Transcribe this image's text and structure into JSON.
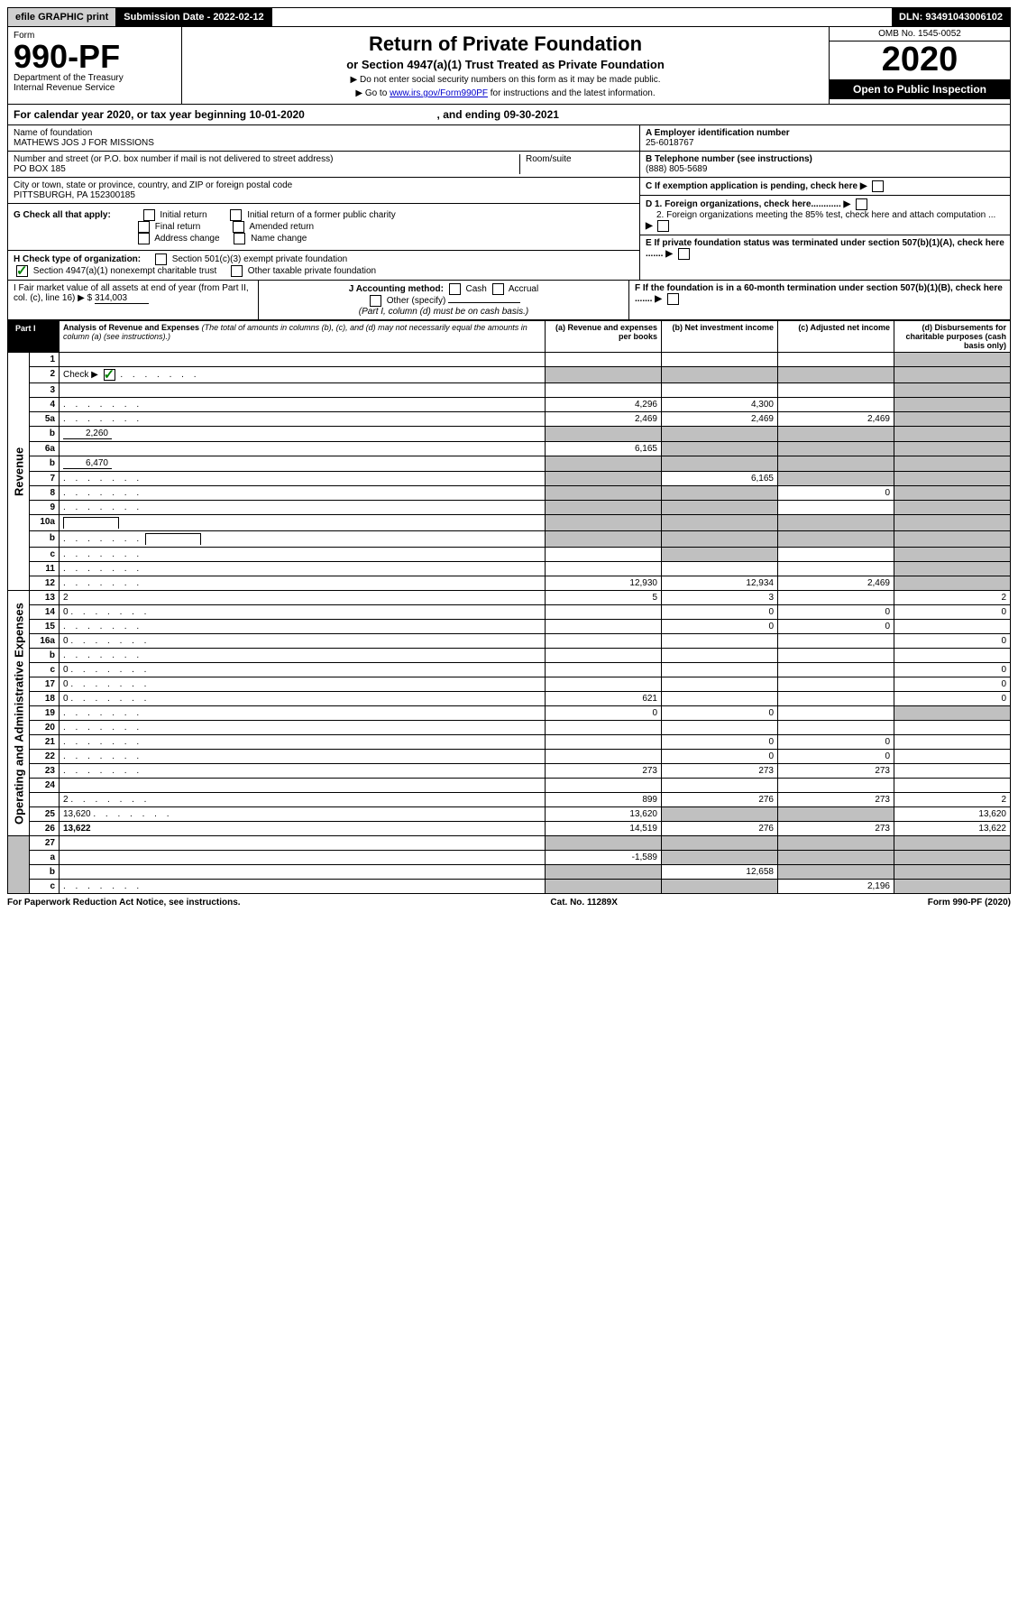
{
  "top": {
    "efile": "efile GRAPHIC print",
    "submission": "Submission Date - 2022-02-12",
    "dln": "DLN: 93491043006102"
  },
  "header": {
    "form_label": "Form",
    "form_number": "990-PF",
    "dept1": "Department of the Treasury",
    "dept2": "Internal Revenue Service",
    "title": "Return of Private Foundation",
    "subtitle": "or Section 4947(a)(1) Trust Treated as Private Foundation",
    "instr1": "▶ Do not enter social security numbers on this form as it may be made public.",
    "instr2a": "▶ Go to ",
    "instr2_link": "www.irs.gov/Form990PF",
    "instr2b": " for instructions and the latest information.",
    "omb": "OMB No. 1545-0052",
    "year": "2020",
    "open": "Open to Public Inspection"
  },
  "cal_year": {
    "prefix": "For calendar year 2020, or tax year beginning ",
    "begin": "10-01-2020",
    "mid": " , and ending ",
    "end": "09-30-2021"
  },
  "info": {
    "name_label": "Name of foundation",
    "name": "MATHEWS JOS J FOR MISSIONS",
    "addr_label": "Number and street (or P.O. box number if mail is not delivered to street address)",
    "addr": "PO BOX 185",
    "room_label": "Room/suite",
    "city_label": "City or town, state or province, country, and ZIP or foreign postal code",
    "city": "PITTSBURGH, PA  152300185",
    "A_label": "A Employer identification number",
    "A_val": "25-6018767",
    "B_label": "B Telephone number (see instructions)",
    "B_val": "(888) 805-5689",
    "C_label": "C If exemption application is pending, check here",
    "D1_label": "D 1. Foreign organizations, check here............",
    "D2_label": "2. Foreign organizations meeting the 85% test, check here and attach computation ...",
    "E_label": "E  If private foundation status was terminated under section 507(b)(1)(A), check here .......",
    "F_label": "F  If the foundation is in a 60-month termination under section 507(b)(1)(B), check here .......",
    "G_label": "G Check all that apply:",
    "G_opts": [
      "Initial return",
      "Initial return of a former public charity",
      "Final return",
      "Amended return",
      "Address change",
      "Name change"
    ],
    "H_label": "H Check type of organization:",
    "H_opt1": "Section 501(c)(3) exempt private foundation",
    "H_opt2": "Section 4947(a)(1) nonexempt charitable trust",
    "H_opt3": "Other taxable private foundation",
    "I_label": "I Fair market value of all assets at end of year (from Part II, col. (c), line 16) ▶ $",
    "I_val": "314,003",
    "J_label": "J Accounting method:",
    "J_cash": "Cash",
    "J_accrual": "Accrual",
    "J_other": "Other (specify)",
    "J_note": "(Part I, column (d) must be on cash basis.)"
  },
  "part1": {
    "label": "Part I",
    "title": "Analysis of Revenue and Expenses",
    "title_note": " (The total of amounts in columns (b), (c), and (d) may not necessarily equal the amounts in column (a) (see instructions).)",
    "col_a": "(a)  Revenue and expenses per books",
    "col_b": "(b)  Net investment income",
    "col_c": "(c)  Adjusted net income",
    "col_d": "(d)  Disbursements for charitable purposes (cash basis only)"
  },
  "vert": {
    "revenue": "Revenue",
    "expenses": "Operating and Administrative Expenses"
  },
  "rows": [
    {
      "n": "1",
      "d": "",
      "a": "",
      "b": "",
      "c": "",
      "d_shade": true
    },
    {
      "n": "2",
      "d_prefix": "Check ▶ ",
      "d_check": true,
      "d": "",
      "dots": true,
      "a": "",
      "b": "",
      "c": "",
      "abcd_shade": true
    },
    {
      "n": "3",
      "d": "",
      "a": "",
      "b": "",
      "c": "",
      "d_shade": true
    },
    {
      "n": "4",
      "d": "",
      "dots": true,
      "a": "4,296",
      "b": "4,300",
      "c": "",
      "d_shade": true
    },
    {
      "n": "5a",
      "d": "",
      "dots": true,
      "a": "2,469",
      "b": "2,469",
      "c": "2,469",
      "d_shade": true
    },
    {
      "n": "b",
      "d": "",
      "inline_val": "2,260",
      "a": "",
      "b": "",
      "c": "",
      "abcd_shade": true
    },
    {
      "n": "6a",
      "d": "",
      "a": "6,165",
      "b": "",
      "c": "",
      "bcd_shade": true
    },
    {
      "n": "b",
      "d": "",
      "inline_val": "6,470",
      "a": "",
      "b": "",
      "c": "",
      "abcd_shade": true
    },
    {
      "n": "7",
      "d": "",
      "dots": true,
      "a": "",
      "b": "6,165",
      "c": "",
      "a_shade": true,
      "cd_shade": true
    },
    {
      "n": "8",
      "d": "",
      "dots": true,
      "a": "",
      "b": "",
      "c": "0",
      "ab_shade": true,
      "d_shade": true
    },
    {
      "n": "9",
      "d": "",
      "dots": true,
      "a": "",
      "b": "",
      "c": "",
      "ab_shade": true,
      "d_shade": true
    },
    {
      "n": "10a",
      "d": "",
      "box": true,
      "a": "",
      "b": "",
      "c": "",
      "abcd_shade": true
    },
    {
      "n": "b",
      "d": "",
      "dots": true,
      "box": true,
      "a": "",
      "b": "",
      "c": "",
      "abcd_shade": true
    },
    {
      "n": "c",
      "d": "",
      "dots": true,
      "a": "",
      "b": "",
      "c": "",
      "b_shade": true,
      "d_shade": true
    },
    {
      "n": "11",
      "d": "",
      "dots": true,
      "a": "",
      "b": "",
      "c": "",
      "d_shade": true
    },
    {
      "n": "12",
      "d": "",
      "dots": true,
      "bold": true,
      "a": "12,930",
      "b": "12,934",
      "c": "2,469",
      "d_shade": true
    }
  ],
  "exp_rows": [
    {
      "n": "13",
      "d": "2",
      "a": "5",
      "b": "3",
      "c": ""
    },
    {
      "n": "14",
      "d": "0",
      "dots": true,
      "a": "",
      "b": "0",
      "c": "0"
    },
    {
      "n": "15",
      "d": "",
      "dots": true,
      "a": "",
      "b": "0",
      "c": "0"
    },
    {
      "n": "16a",
      "d": "0",
      "dots": true,
      "a": "",
      "b": "",
      "c": ""
    },
    {
      "n": "b",
      "d": "",
      "dots": true,
      "a": "",
      "b": "",
      "c": ""
    },
    {
      "n": "c",
      "d": "0",
      "dots": true,
      "a": "",
      "b": "",
      "c": ""
    },
    {
      "n": "17",
      "d": "0",
      "dots": true,
      "a": "",
      "b": "",
      "c": ""
    },
    {
      "n": "18",
      "d": "0",
      "dots": true,
      "a": "621",
      "b": "",
      "c": ""
    },
    {
      "n": "19",
      "d": "",
      "dots": true,
      "a": "0",
      "b": "0",
      "c": "",
      "d_shade": true
    },
    {
      "n": "20",
      "d": "",
      "dots": true,
      "a": "",
      "b": "",
      "c": ""
    },
    {
      "n": "21",
      "d": "",
      "dots": true,
      "a": "",
      "b": "0",
      "c": "0"
    },
    {
      "n": "22",
      "d": "",
      "dots": true,
      "a": "",
      "b": "0",
      "c": "0"
    },
    {
      "n": "23",
      "d": "",
      "dots": true,
      "a": "273",
      "b": "273",
      "c": "273"
    },
    {
      "n": "24",
      "d": "",
      "bold": true,
      "a": "",
      "b": "",
      "c": "",
      "no_border": true
    },
    {
      "n": "",
      "d": "2",
      "dots": true,
      "a": "899",
      "b": "276",
      "c": "273"
    },
    {
      "n": "25",
      "d": "13,620",
      "dots": true,
      "a": "13,620",
      "b": "",
      "c": "",
      "bc_shade": true
    },
    {
      "n": "26",
      "d": "13,622",
      "bold": true,
      "a": "14,519",
      "b": "276",
      "c": "273"
    }
  ],
  "bottom_rows": [
    {
      "n": "27",
      "d": "",
      "a": "",
      "b": "",
      "c": "",
      "abcd_shade": true
    },
    {
      "n": "a",
      "d": "",
      "bold": true,
      "a": "-1,589",
      "b": "",
      "c": "",
      "bcd_shade": true
    },
    {
      "n": "b",
      "d": "",
      "bold": true,
      "a": "",
      "b": "12,658",
      "c": "",
      "a_shade": true,
      "cd_shade": true
    },
    {
      "n": "c",
      "d": "",
      "bold": true,
      "dots": true,
      "a": "",
      "b": "",
      "c": "2,196",
      "ab_shade": true,
      "d_shade": true
    }
  ],
  "footer": {
    "left": "For Paperwork Reduction Act Notice, see instructions.",
    "center": "Cat. No. 11289X",
    "right": "Form 990-PF (2020)"
  }
}
